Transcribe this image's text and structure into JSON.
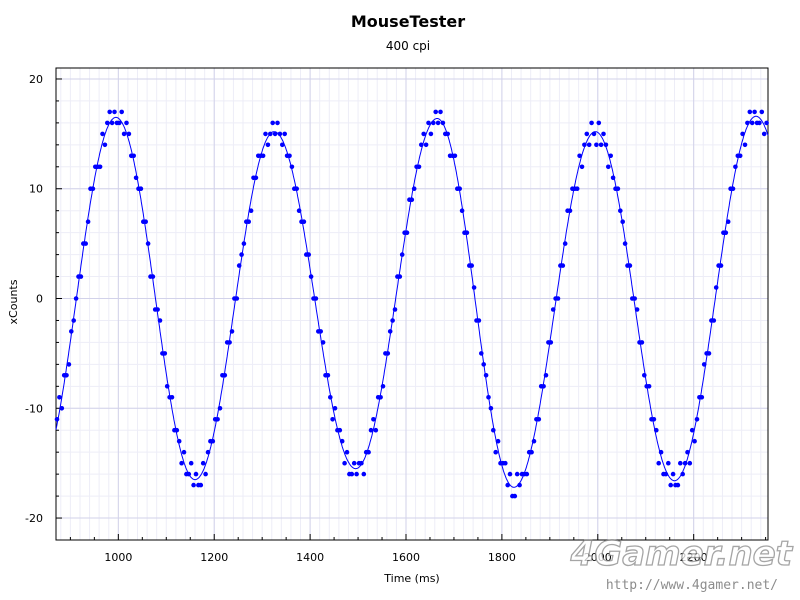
{
  "chart_data": {
    "type": "scatter",
    "title": "MouseTester",
    "subtitle": "400 cpi",
    "xlabel": "Time (ms)",
    "ylabel": "xCounts",
    "xlim": [
      870,
      2355
    ],
    "ylim": [
      -22,
      21
    ],
    "xticks": [
      1000,
      1200,
      1400,
      1600,
      1800,
      2000,
      2200
    ],
    "yticks": [
      -20,
      -10,
      0,
      10,
      20
    ],
    "minor_x_step": 20,
    "minor_y_step": 2,
    "grid": true,
    "legend": "none",
    "series": [
      {
        "kind": "points",
        "color": "#0000ff",
        "waveform": {
          "peaks": [
            {
              "t": 995,
              "y": 16.5
            },
            {
              "t": 1160,
              "y": -16.5
            },
            {
              "t": 1325,
              "y": 15.2
            },
            {
              "t": 1495,
              "y": -15.5
            },
            {
              "t": 1665,
              "y": 16.4
            },
            {
              "t": 1825,
              "y": -17.2
            },
            {
              "t": 1995,
              "y": 15.2
            },
            {
              "t": 2160,
              "y": -16.6
            },
            {
              "t": 2330,
              "y": 16.6
            }
          ],
          "sample_interval_ms": 5,
          "quantized": true
        }
      },
      {
        "kind": "line",
        "color": "#0000ff",
        "smoothed": true
      }
    ]
  },
  "watermark": {
    "text": "4Gamer.net",
    "url": "http://www.4gamer.net/"
  }
}
